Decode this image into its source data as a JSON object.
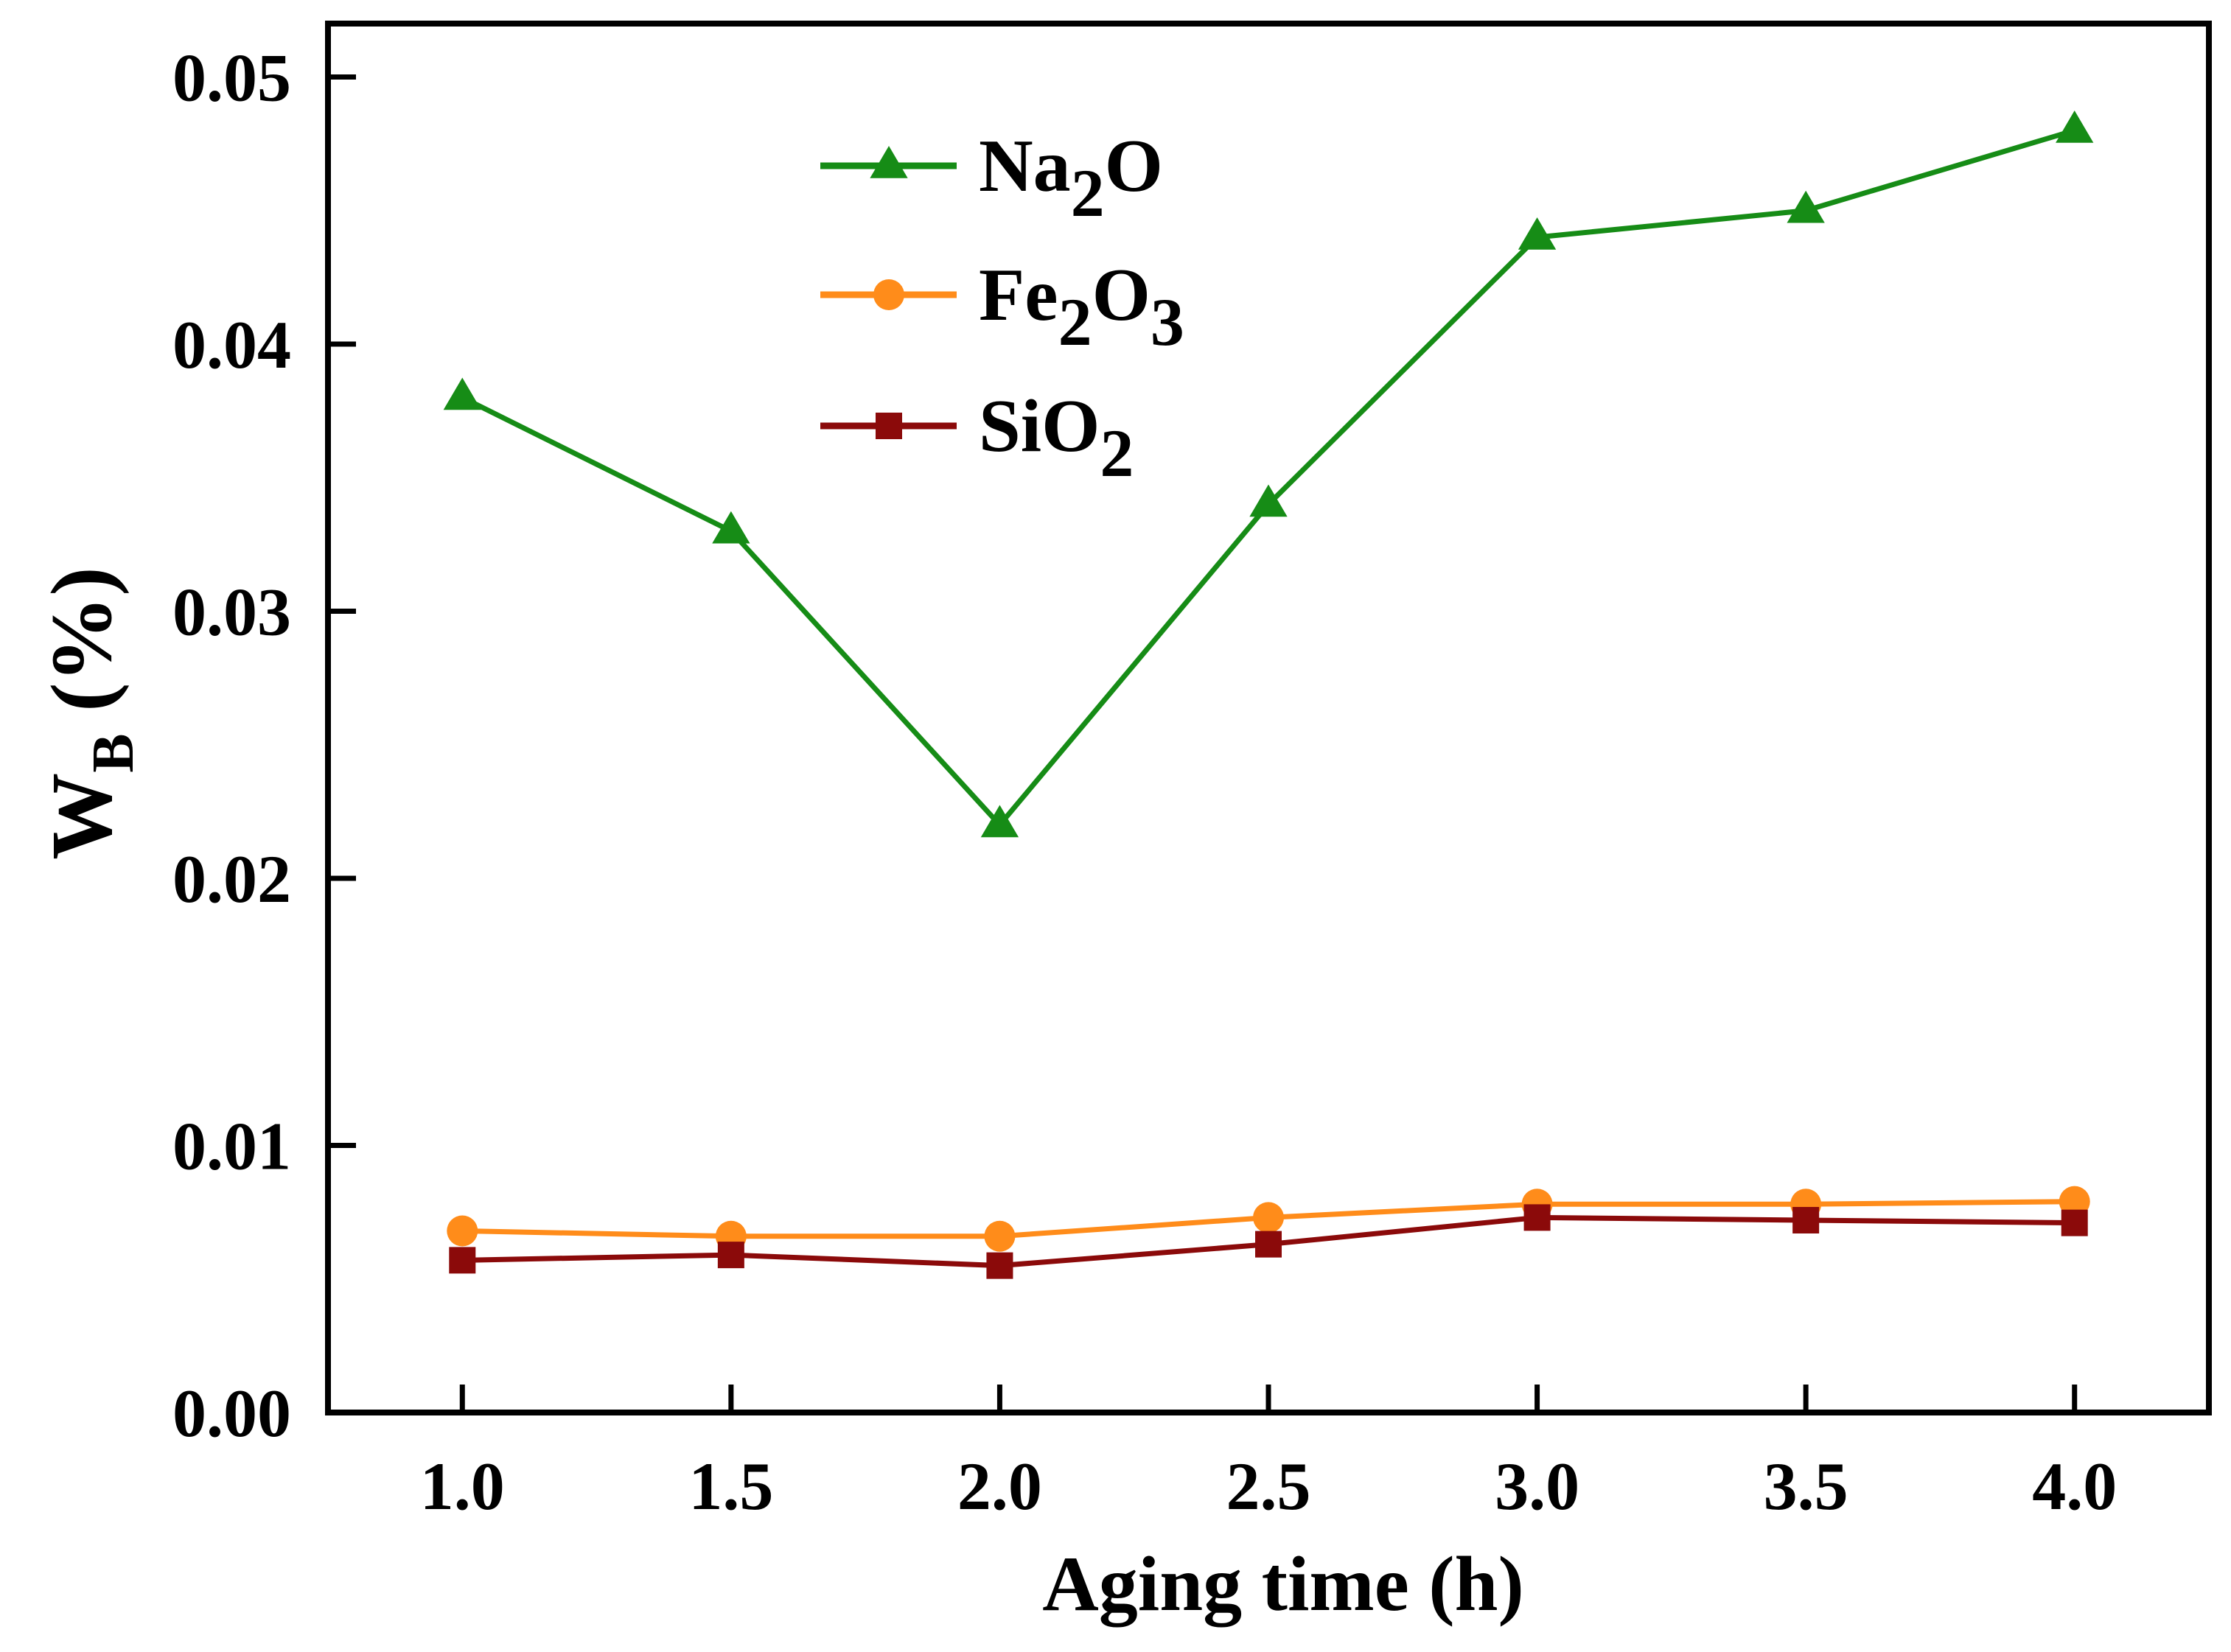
{
  "chart_data": {
    "type": "line",
    "title": "",
    "xlabel": "Aging time (h)",
    "ylabel": {
      "main": "W",
      "sub": "B",
      "unit": " (%)"
    },
    "x": [
      1.0,
      1.5,
      2.0,
      2.5,
      3.0,
      3.5,
      4.0
    ],
    "xlim": [
      0.75,
      4.25
    ],
    "ylim": [
      0,
      0.052
    ],
    "xticks": [
      "1.0",
      "1.5",
      "2.0",
      "2.5",
      "3.0",
      "3.5",
      "4.0"
    ],
    "yticks": [
      "0.00",
      "0.01",
      "0.02",
      "0.03",
      "0.04",
      "0.05"
    ],
    "grid": false,
    "legend_position": "top-center",
    "series": [
      {
        "name": "Na2O",
        "label_parts": [
          {
            "t": "Na",
            "sub": false
          },
          {
            "t": "2",
            "sub": true
          },
          {
            "t": "O",
            "sub": false
          }
        ],
        "color": "#168c16",
        "marker": "triangle",
        "values": [
          0.038,
          0.033,
          0.022,
          0.034,
          0.044,
          0.045,
          0.048
        ]
      },
      {
        "name": "Fe2O3",
        "label_parts": [
          {
            "t": "Fe",
            "sub": false
          },
          {
            "t": "2",
            "sub": true
          },
          {
            "t": "O",
            "sub": false
          },
          {
            "t": "3",
            "sub": true
          }
        ],
        "color": "#ff8c1a",
        "marker": "circle",
        "values": [
          0.0068,
          0.0066,
          0.0066,
          0.0073,
          0.0078,
          0.0078,
          0.0079
        ]
      },
      {
        "name": "SiO2",
        "label_parts": [
          {
            "t": "SiO",
            "sub": false
          },
          {
            "t": "2",
            "sub": true
          }
        ],
        "color": "#8b0a0a",
        "marker": "square",
        "values": [
          0.0057,
          0.0059,
          0.0055,
          0.0063,
          0.0073,
          0.0072,
          0.0071
        ]
      }
    ]
  }
}
